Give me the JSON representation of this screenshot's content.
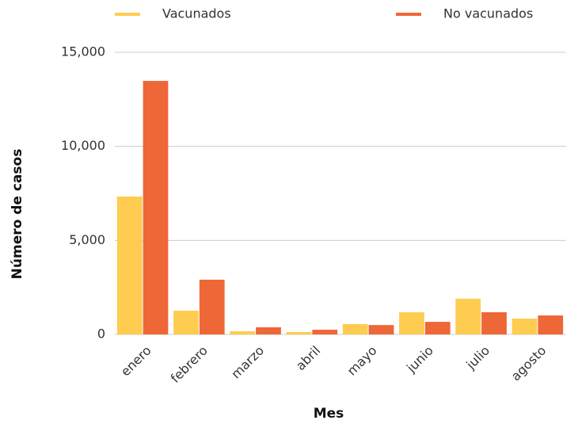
{
  "chart_data": {
    "type": "bar",
    "categories": [
      "enero",
      "febrero",
      "marzo",
      "abril",
      "mayo",
      "junio",
      "julio",
      "agosto"
    ],
    "series": [
      {
        "name": "Vacunados",
        "color": "#fecc50",
        "values": [
          7330,
          1260,
          170,
          130,
          550,
          1180,
          1900,
          840
        ]
      },
      {
        "name": "No vacunados",
        "color": "#ee6737",
        "values": [
          13480,
          2910,
          380,
          250,
          500,
          670,
          1180,
          1010
        ]
      }
    ],
    "xlabel": "Mes",
    "ylabel": "Número de casos",
    "ylim": [
      0,
      15000
    ],
    "yticks": [
      0,
      {
        "value": 5000,
        "label": "5,000"
      },
      {
        "value": 10000,
        "label": "10,000"
      },
      {
        "value": 15000,
        "label": "15,000"
      }
    ],
    "grid": true,
    "legend": "top"
  }
}
